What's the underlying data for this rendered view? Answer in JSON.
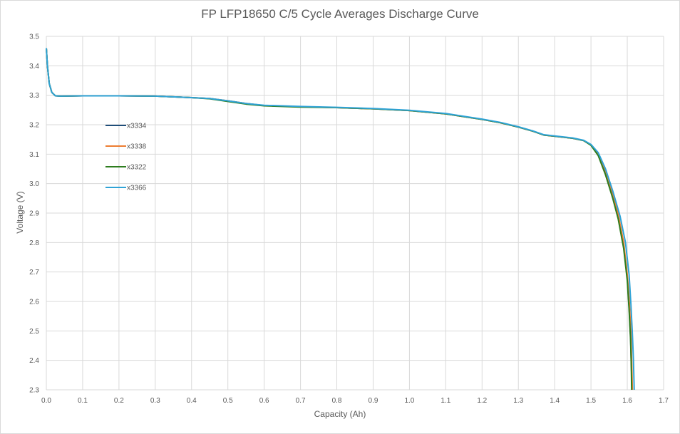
{
  "chart_data": {
    "type": "line",
    "title": "FP LFP18650 C/5 Cycle Averages Discharge Curve",
    "xlabel": "Capacity (Ah)",
    "ylabel": "Voltage (V)",
    "xlim": [
      0,
      1.7
    ],
    "ylim": [
      2.3,
      3.5
    ],
    "x_ticks": [
      "0.0",
      "0.1",
      "0.2",
      "0.3",
      "0.4",
      "0.5",
      "0.6",
      "0.7",
      "0.8",
      "0.9",
      "1.0",
      "1.1",
      "1.2",
      "1.3",
      "1.4",
      "1.5",
      "1.6",
      "1.7"
    ],
    "y_ticks": [
      "2.3",
      "2.4",
      "2.5",
      "2.6",
      "2.7",
      "2.8",
      "2.9",
      "3.0",
      "3.1",
      "3.2",
      "3.3",
      "3.4",
      "3.5"
    ],
    "grid": true,
    "legend_position": "left",
    "series": [
      {
        "name": "x3334",
        "color": "#1f4e79",
        "points": [
          [
            0,
            3.46
          ],
          [
            0.003,
            3.4
          ],
          [
            0.008,
            3.34
          ],
          [
            0.015,
            3.31
          ],
          [
            0.025,
            3.298
          ],
          [
            0.04,
            3.297
          ],
          [
            0.1,
            3.298
          ],
          [
            0.2,
            3.298
          ],
          [
            0.3,
            3.297
          ],
          [
            0.4,
            3.292
          ],
          [
            0.45,
            3.289
          ],
          [
            0.5,
            3.281
          ],
          [
            0.55,
            3.272
          ],
          [
            0.6,
            3.265
          ],
          [
            0.7,
            3.261
          ],
          [
            0.8,
            3.258
          ],
          [
            0.9,
            3.254
          ],
          [
            1.0,
            3.248
          ],
          [
            1.1,
            3.237
          ],
          [
            1.2,
            3.218
          ],
          [
            1.25,
            3.207
          ],
          [
            1.3,
            3.192
          ],
          [
            1.34,
            3.178
          ],
          [
            1.37,
            3.165
          ],
          [
            1.4,
            3.161
          ],
          [
            1.45,
            3.154
          ],
          [
            1.48,
            3.146
          ],
          [
            1.5,
            3.131
          ],
          [
            1.52,
            3.1
          ],
          [
            1.54,
            3.04
          ],
          [
            1.56,
            2.96
          ],
          [
            1.575,
            2.89
          ],
          [
            1.59,
            2.79
          ],
          [
            1.6,
            2.68
          ],
          [
            1.605,
            2.58
          ],
          [
            1.609,
            2.48
          ],
          [
            1.611,
            2.39
          ],
          [
            1.613,
            2.3
          ]
        ]
      },
      {
        "name": "x3338",
        "color": "#ed7d31",
        "points": [
          [
            0,
            3.46
          ],
          [
            0.003,
            3.4
          ],
          [
            0.008,
            3.34
          ],
          [
            0.015,
            3.31
          ],
          [
            0.025,
            3.298
          ],
          [
            0.04,
            3.297
          ],
          [
            0.1,
            3.298
          ],
          [
            0.2,
            3.298
          ],
          [
            0.3,
            3.297
          ],
          [
            0.4,
            3.292
          ],
          [
            0.45,
            3.289
          ],
          [
            0.5,
            3.281
          ],
          [
            0.55,
            3.272
          ],
          [
            0.6,
            3.265
          ],
          [
            0.7,
            3.261
          ],
          [
            0.8,
            3.258
          ],
          [
            0.9,
            3.254
          ],
          [
            1.0,
            3.248
          ],
          [
            1.1,
            3.237
          ],
          [
            1.2,
            3.218
          ],
          [
            1.25,
            3.207
          ],
          [
            1.3,
            3.192
          ],
          [
            1.34,
            3.178
          ],
          [
            1.37,
            3.165
          ],
          [
            1.4,
            3.161
          ],
          [
            1.45,
            3.154
          ],
          [
            1.48,
            3.146
          ],
          [
            1.5,
            3.131
          ],
          [
            1.52,
            3.1
          ],
          [
            1.54,
            3.045
          ],
          [
            1.56,
            2.965
          ],
          [
            1.575,
            2.895
          ],
          [
            1.59,
            2.8
          ],
          [
            1.6,
            2.69
          ],
          [
            1.606,
            2.59
          ],
          [
            1.61,
            2.49
          ],
          [
            1.612,
            2.4
          ],
          [
            1.614,
            2.3
          ]
        ]
      },
      {
        "name": "x3322",
        "color": "#2e7d1f",
        "points": [
          [
            0,
            3.46
          ],
          [
            0.003,
            3.4
          ],
          [
            0.008,
            3.34
          ],
          [
            0.015,
            3.31
          ],
          [
            0.025,
            3.298
          ],
          [
            0.04,
            3.297
          ],
          [
            0.1,
            3.298
          ],
          [
            0.2,
            3.298
          ],
          [
            0.3,
            3.297
          ],
          [
            0.4,
            3.292
          ],
          [
            0.45,
            3.288
          ],
          [
            0.5,
            3.279
          ],
          [
            0.55,
            3.27
          ],
          [
            0.6,
            3.264
          ],
          [
            0.7,
            3.26
          ],
          [
            0.8,
            3.258
          ],
          [
            0.9,
            3.254
          ],
          [
            1.0,
            3.248
          ],
          [
            1.1,
            3.237
          ],
          [
            1.2,
            3.218
          ],
          [
            1.25,
            3.207
          ],
          [
            1.3,
            3.192
          ],
          [
            1.34,
            3.178
          ],
          [
            1.37,
            3.165
          ],
          [
            1.4,
            3.161
          ],
          [
            1.45,
            3.154
          ],
          [
            1.48,
            3.146
          ],
          [
            1.5,
            3.13
          ],
          [
            1.52,
            3.095
          ],
          [
            1.54,
            3.03
          ],
          [
            1.56,
            2.95
          ],
          [
            1.575,
            2.88
          ],
          [
            1.59,
            2.78
          ],
          [
            1.6,
            2.67
          ],
          [
            1.605,
            2.57
          ],
          [
            1.609,
            2.47
          ],
          [
            1.611,
            2.38
          ],
          [
            1.612,
            2.3
          ]
        ]
      },
      {
        "name": "x3366",
        "color": "#2fa3d6",
        "points": [
          [
            0,
            3.46
          ],
          [
            0.003,
            3.4
          ],
          [
            0.008,
            3.34
          ],
          [
            0.015,
            3.31
          ],
          [
            0.025,
            3.298
          ],
          [
            0.04,
            3.297
          ],
          [
            0.1,
            3.298
          ],
          [
            0.2,
            3.298
          ],
          [
            0.3,
            3.297
          ],
          [
            0.4,
            3.292
          ],
          [
            0.45,
            3.289
          ],
          [
            0.5,
            3.281
          ],
          [
            0.55,
            3.272
          ],
          [
            0.6,
            3.266
          ],
          [
            0.7,
            3.262
          ],
          [
            0.8,
            3.259
          ],
          [
            0.9,
            3.255
          ],
          [
            1.0,
            3.249
          ],
          [
            1.1,
            3.238
          ],
          [
            1.2,
            3.219
          ],
          [
            1.25,
            3.208
          ],
          [
            1.3,
            3.193
          ],
          [
            1.34,
            3.179
          ],
          [
            1.37,
            3.166
          ],
          [
            1.4,
            3.162
          ],
          [
            1.45,
            3.155
          ],
          [
            1.48,
            3.147
          ],
          [
            1.5,
            3.133
          ],
          [
            1.52,
            3.105
          ],
          [
            1.54,
            3.05
          ],
          [
            1.56,
            2.975
          ],
          [
            1.58,
            2.89
          ],
          [
            1.595,
            2.8
          ],
          [
            1.605,
            2.69
          ],
          [
            1.61,
            2.59
          ],
          [
            1.614,
            2.49
          ],
          [
            1.617,
            2.4
          ],
          [
            1.619,
            2.3
          ]
        ]
      }
    ]
  }
}
